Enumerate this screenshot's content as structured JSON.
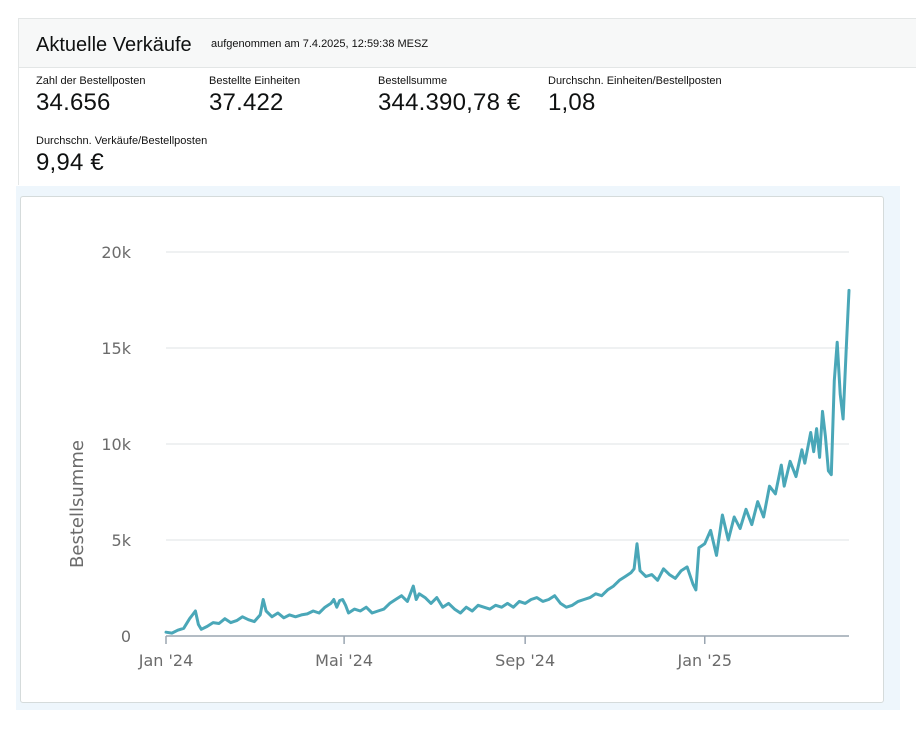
{
  "header": {
    "title": "Aktuelle Verkäufe",
    "captured": "aufgenommen am 7.4.2025, 12:59:38 MESZ"
  },
  "metrics": [
    {
      "label": "Zahl der Bestellposten",
      "value": "34.656"
    },
    {
      "label": "Bestellte Einheiten",
      "value": "37.422"
    },
    {
      "label": "Bestellsumme",
      "value": "344.390,78 €"
    },
    {
      "label": "Durchschn. Einheiten/Bestellposten",
      "value": "1,08"
    },
    {
      "label": "Durchschn. Verkäufe/Bestellposten",
      "value": "9,94 €"
    }
  ],
  "colors": {
    "line": "#4aa7b8",
    "grid": "#dfe3e6",
    "axis": "#9aa5b1",
    "text": "#6b6b6b"
  },
  "chart_data": {
    "type": "line",
    "title": "",
    "xlabel": "",
    "ylabel": "Bestellsumme",
    "ylim": [
      0,
      20000
    ],
    "y_ticks": [
      0,
      5000,
      10000,
      15000,
      20000
    ],
    "y_tick_labels": [
      "0",
      "5k",
      "10k",
      "15k",
      "20k"
    ],
    "x_ticks": [
      0,
      121,
      244,
      366
    ],
    "x_tick_labels": [
      "Jan '24",
      "Mai '24",
      "Sep '24",
      "Jan '25"
    ],
    "series": [
      {
        "name": "Bestellsumme",
        "x_unit": "days since 2024-01-01",
        "points": [
          [
            0,
            200
          ],
          [
            4,
            150
          ],
          [
            8,
            300
          ],
          [
            12,
            400
          ],
          [
            16,
            900
          ],
          [
            18,
            1100
          ],
          [
            20,
            1300
          ],
          [
            22,
            600
          ],
          [
            24,
            350
          ],
          [
            28,
            500
          ],
          [
            32,
            700
          ],
          [
            36,
            650
          ],
          [
            40,
            900
          ],
          [
            44,
            700
          ],
          [
            48,
            800
          ],
          [
            52,
            1000
          ],
          [
            56,
            850
          ],
          [
            60,
            750
          ],
          [
            64,
            1100
          ],
          [
            66,
            1900
          ],
          [
            68,
            1300
          ],
          [
            72,
            1000
          ],
          [
            76,
            1200
          ],
          [
            80,
            950
          ],
          [
            84,
            1100
          ],
          [
            88,
            1000
          ],
          [
            92,
            1100
          ],
          [
            96,
            1150
          ],
          [
            100,
            1300
          ],
          [
            104,
            1200
          ],
          [
            108,
            1500
          ],
          [
            112,
            1700
          ],
          [
            114,
            1900
          ],
          [
            116,
            1500
          ],
          [
            118,
            1850
          ],
          [
            120,
            1900
          ],
          [
            122,
            1600
          ],
          [
            124,
            1200
          ],
          [
            128,
            1400
          ],
          [
            132,
            1300
          ],
          [
            136,
            1500
          ],
          [
            140,
            1200
          ],
          [
            144,
            1300
          ],
          [
            148,
            1400
          ],
          [
            152,
            1700
          ],
          [
            156,
            1900
          ],
          [
            160,
            2100
          ],
          [
            164,
            1800
          ],
          [
            168,
            2600
          ],
          [
            170,
            1900
          ],
          [
            172,
            2200
          ],
          [
            176,
            2000
          ],
          [
            180,
            1700
          ],
          [
            184,
            2000
          ],
          [
            188,
            1500
          ],
          [
            192,
            1700
          ],
          [
            196,
            1400
          ],
          [
            200,
            1200
          ],
          [
            204,
            1500
          ],
          [
            208,
            1300
          ],
          [
            212,
            1600
          ],
          [
            216,
            1500
          ],
          [
            220,
            1400
          ],
          [
            224,
            1600
          ],
          [
            228,
            1500
          ],
          [
            232,
            1700
          ],
          [
            236,
            1500
          ],
          [
            240,
            1800
          ],
          [
            244,
            1700
          ],
          [
            248,
            1900
          ],
          [
            252,
            2000
          ],
          [
            256,
            1800
          ],
          [
            260,
            1900
          ],
          [
            264,
            2100
          ],
          [
            268,
            1700
          ],
          [
            272,
            1500
          ],
          [
            276,
            1600
          ],
          [
            280,
            1800
          ],
          [
            284,
            1900
          ],
          [
            288,
            2000
          ],
          [
            292,
            2200
          ],
          [
            296,
            2100
          ],
          [
            300,
            2400
          ],
          [
            304,
            2600
          ],
          [
            308,
            2900
          ],
          [
            312,
            3100
          ],
          [
            316,
            3300
          ],
          [
            318,
            3500
          ],
          [
            320,
            4800
          ],
          [
            322,
            3400
          ],
          [
            326,
            3100
          ],
          [
            330,
            3200
          ],
          [
            334,
            2900
          ],
          [
            338,
            3500
          ],
          [
            342,
            3200
          ],
          [
            346,
            3000
          ],
          [
            350,
            3400
          ],
          [
            354,
            3600
          ],
          [
            358,
            2700
          ],
          [
            360,
            2400
          ],
          [
            362,
            4600
          ],
          [
            366,
            4800
          ],
          [
            370,
            5500
          ],
          [
            374,
            4200
          ],
          [
            378,
            6300
          ],
          [
            382,
            5000
          ],
          [
            386,
            6200
          ],
          [
            390,
            5600
          ],
          [
            394,
            6600
          ],
          [
            398,
            5800
          ],
          [
            402,
            7000
          ],
          [
            406,
            6200
          ],
          [
            410,
            7800
          ],
          [
            414,
            7400
          ],
          [
            418,
            8900
          ],
          [
            420,
            7800
          ],
          [
            424,
            9100
          ],
          [
            428,
            8300
          ],
          [
            432,
            9700
          ],
          [
            434,
            9000
          ],
          [
            438,
            10600
          ],
          [
            440,
            9600
          ],
          [
            442,
            10800
          ],
          [
            444,
            9300
          ],
          [
            446,
            11700
          ],
          [
            448,
            10400
          ],
          [
            450,
            8600
          ],
          [
            452,
            8400
          ],
          [
            454,
            13300
          ],
          [
            456,
            15300
          ],
          [
            458,
            12600
          ],
          [
            460,
            11300
          ],
          [
            462,
            14800
          ],
          [
            464,
            18000
          ]
        ]
      }
    ]
  }
}
